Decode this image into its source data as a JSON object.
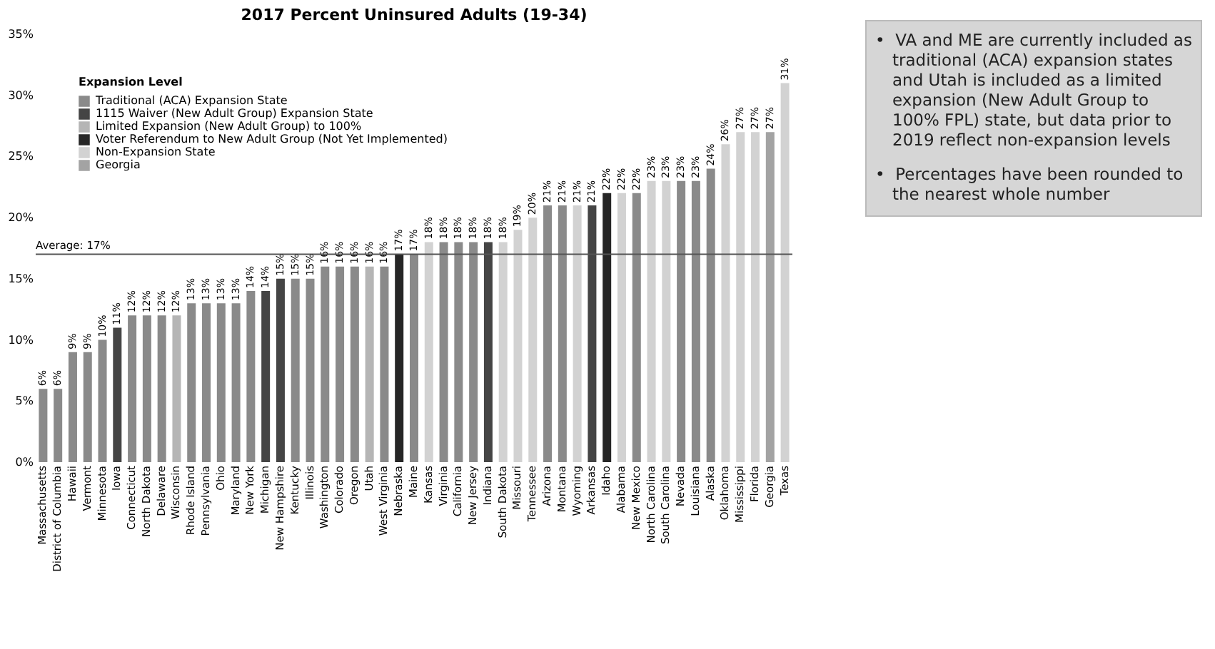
{
  "chart_data": {
    "type": "bar",
    "title": "2017 Percent Uninsured Adults (19-34)",
    "legend_title": "Expansion Level",
    "legend": "top left",
    "data_labels": true,
    "categories": [
      "Massachusetts",
      "District of Columbia",
      "Hawaii",
      "Vermont",
      "Minnesota",
      "Iowa",
      "Connecticut",
      "North Dakota",
      "Delaware",
      "Wisconsin",
      "Rhode Island",
      "Pennsylvania",
      "Ohio",
      "Maryland",
      "New York",
      "Michigan",
      "New Hampshire",
      "Kentucky",
      "Illinois",
      "Washington",
      "Colorado",
      "Oregon",
      "Utah",
      "West Virginia",
      "Nebraska",
      "Maine",
      "Kansas",
      "Virginia",
      "California",
      "New Jersey",
      "Indiana",
      "South Dakota",
      "Missouri",
      "Tennessee",
      "Arizona",
      "Montana",
      "Wyoming",
      "Arkansas",
      "Idaho",
      "Alabama",
      "New Mexico",
      "North Carolina",
      "South Carolina",
      "Nevada",
      "Louisiana",
      "Alaska",
      "Oklahoma",
      "Mississippi",
      "Florida",
      "Georgia",
      "Texas"
    ],
    "series": [
      {
        "name": "Traditional (ACA) Expansion State",
        "color": "#8a8a8a",
        "values": [
          6,
          6,
          9,
          9,
          10,
          null,
          12,
          12,
          12,
          null,
          13,
          13,
          13,
          13,
          14,
          null,
          null,
          15,
          15,
          16,
          16,
          16,
          null,
          16,
          null,
          17,
          null,
          18,
          18,
          18,
          null,
          null,
          null,
          null,
          21,
          21,
          null,
          null,
          null,
          null,
          22,
          null,
          null,
          23,
          23,
          24,
          null,
          null,
          null,
          null,
          null
        ],
        "value_labels": [
          "6%",
          "6%",
          "9%",
          "9%",
          "10%",
          null,
          "12%",
          "12%",
          "12%",
          null,
          "13%",
          "13%",
          "13%",
          "13%",
          "14%",
          null,
          null,
          "15%",
          "15%",
          "16%",
          "16%",
          "16%",
          null,
          "16%",
          null,
          "17%",
          null,
          "18%",
          "18%",
          "18%",
          null,
          null,
          null,
          null,
          "21%",
          "21%",
          null,
          null,
          null,
          null,
          "22%",
          null,
          null,
          "23%",
          "23%",
          "24%",
          null,
          null,
          null,
          null,
          null
        ]
      },
      {
        "name": "1115 Waiver (New Adult Group) Expansion State",
        "color": "#454545",
        "values": [
          null,
          null,
          null,
          null,
          null,
          11,
          null,
          null,
          null,
          null,
          null,
          null,
          null,
          null,
          null,
          14,
          15,
          null,
          null,
          null,
          null,
          null,
          null,
          null,
          null,
          null,
          null,
          null,
          null,
          null,
          18,
          null,
          null,
          null,
          null,
          null,
          null,
          21,
          null,
          null,
          null,
          null,
          null,
          null,
          null,
          null,
          null,
          null,
          null,
          null,
          null
        ],
        "value_labels": [
          null,
          null,
          null,
          null,
          null,
          "11%",
          null,
          null,
          null,
          null,
          null,
          null,
          null,
          null,
          null,
          "14%",
          "15%",
          null,
          null,
          null,
          null,
          null,
          null,
          null,
          null,
          null,
          null,
          null,
          null,
          null,
          "18%",
          null,
          null,
          null,
          null,
          null,
          null,
          "21%",
          null,
          null,
          null,
          null,
          null,
          null,
          null,
          null,
          null,
          null,
          null,
          null,
          null
        ]
      },
      {
        "name": "Limited Expansion (New Adult Group) to 100%",
        "color": "#b5b5b5",
        "values": [
          null,
          null,
          null,
          null,
          null,
          null,
          null,
          null,
          null,
          12,
          null,
          null,
          null,
          null,
          null,
          null,
          null,
          null,
          null,
          null,
          null,
          null,
          16,
          null,
          null,
          null,
          null,
          null,
          null,
          null,
          null,
          null,
          null,
          null,
          null,
          null,
          null,
          null,
          null,
          null,
          null,
          null,
          null,
          null,
          null,
          null,
          null,
          null,
          null,
          null,
          null
        ],
        "value_labels": [
          null,
          null,
          null,
          null,
          null,
          null,
          null,
          null,
          null,
          "12%",
          null,
          null,
          null,
          null,
          null,
          null,
          null,
          null,
          null,
          null,
          null,
          null,
          "16%",
          null,
          null,
          null,
          null,
          null,
          null,
          null,
          null,
          null,
          null,
          null,
          null,
          null,
          null,
          null,
          null,
          null,
          null,
          null,
          null,
          null,
          null,
          null,
          null,
          null,
          null,
          null,
          null
        ]
      },
      {
        "name": "Voter Referendum to New Adult Group (Not Yet Implemented)",
        "color": "#262626",
        "values": [
          null,
          null,
          null,
          null,
          null,
          null,
          null,
          null,
          null,
          null,
          null,
          null,
          null,
          null,
          null,
          null,
          null,
          null,
          null,
          null,
          null,
          null,
          null,
          null,
          17,
          null,
          null,
          null,
          null,
          null,
          null,
          null,
          null,
          null,
          null,
          null,
          null,
          null,
          22,
          null,
          null,
          null,
          null,
          null,
          null,
          null,
          null,
          null,
          null,
          null,
          null
        ],
        "value_labels": [
          null,
          null,
          null,
          null,
          null,
          null,
          null,
          null,
          null,
          null,
          null,
          null,
          null,
          null,
          null,
          null,
          null,
          null,
          null,
          null,
          null,
          null,
          null,
          null,
          "17%",
          null,
          null,
          null,
          null,
          null,
          null,
          null,
          null,
          null,
          null,
          null,
          null,
          null,
          "22%",
          null,
          null,
          null,
          null,
          null,
          null,
          null,
          null,
          null,
          null,
          null,
          null
        ]
      },
      {
        "name": "Non-Expansion State",
        "color": "#d2d2d2",
        "values": [
          null,
          null,
          null,
          null,
          null,
          null,
          null,
          null,
          null,
          null,
          null,
          null,
          null,
          null,
          null,
          null,
          null,
          null,
          null,
          null,
          null,
          null,
          null,
          null,
          null,
          null,
          18,
          null,
          null,
          null,
          null,
          18,
          19,
          20,
          null,
          null,
          21,
          null,
          null,
          22,
          null,
          23,
          23,
          null,
          null,
          null,
          26,
          27,
          27,
          null,
          31
        ],
        "value_labels": [
          null,
          null,
          null,
          null,
          null,
          null,
          null,
          null,
          null,
          null,
          null,
          null,
          null,
          null,
          null,
          null,
          null,
          null,
          null,
          null,
          null,
          null,
          null,
          null,
          null,
          null,
          "18%",
          null,
          null,
          null,
          null,
          "18%",
          "19%",
          "20%",
          null,
          null,
          "21%",
          null,
          null,
          "22%",
          null,
          "23%",
          "23%",
          null,
          null,
          null,
          "26%",
          "27%",
          "27%",
          null,
          "31%"
        ]
      },
      {
        "name": "Georgia",
        "color": "#a3a3a3",
        "values": [
          null,
          null,
          null,
          null,
          null,
          null,
          null,
          null,
          null,
          null,
          null,
          null,
          null,
          null,
          null,
          null,
          null,
          null,
          null,
          null,
          null,
          null,
          null,
          null,
          null,
          null,
          null,
          null,
          null,
          null,
          null,
          null,
          null,
          null,
          null,
          null,
          null,
          null,
          null,
          null,
          null,
          null,
          null,
          null,
          null,
          null,
          null,
          null,
          null,
          27,
          null
        ],
        "value_labels": [
          null,
          null,
          null,
          null,
          null,
          null,
          null,
          null,
          null,
          null,
          null,
          null,
          null,
          null,
          null,
          null,
          null,
          null,
          null,
          null,
          null,
          null,
          null,
          null,
          null,
          null,
          null,
          null,
          null,
          null,
          null,
          null,
          null,
          null,
          null,
          null,
          null,
          null,
          null,
          null,
          null,
          null,
          null,
          null,
          null,
          null,
          null,
          null,
          null,
          "27%",
          null
        ]
      }
    ],
    "ylim": [
      0,
      35
    ],
    "yticks": [
      {
        "value": 0,
        "label": "0%"
      },
      {
        "value": 5,
        "label": "5%"
      },
      {
        "value": 10,
        "label": "10%"
      },
      {
        "value": 15,
        "label": "15%"
      },
      {
        "value": 20,
        "label": "20%"
      },
      {
        "value": 25,
        "label": "25%"
      },
      {
        "value": 30,
        "label": "30%"
      },
      {
        "value": 35,
        "label": "35%"
      }
    ],
    "ref_lines": [
      {
        "axis": "y",
        "value": 17,
        "label": "Average: 17%",
        "color": "#555555"
      }
    ],
    "annotations": [
      "•  VA and ME are currently included as traditional (ACA) expansion states and Utah is included as a limited expansion (New Adult Group to 100% FPL) state, but data prior to 2019 reflect non-expansion levels",
      "•  Percentages have been rounded to the nearest whole number"
    ]
  }
}
